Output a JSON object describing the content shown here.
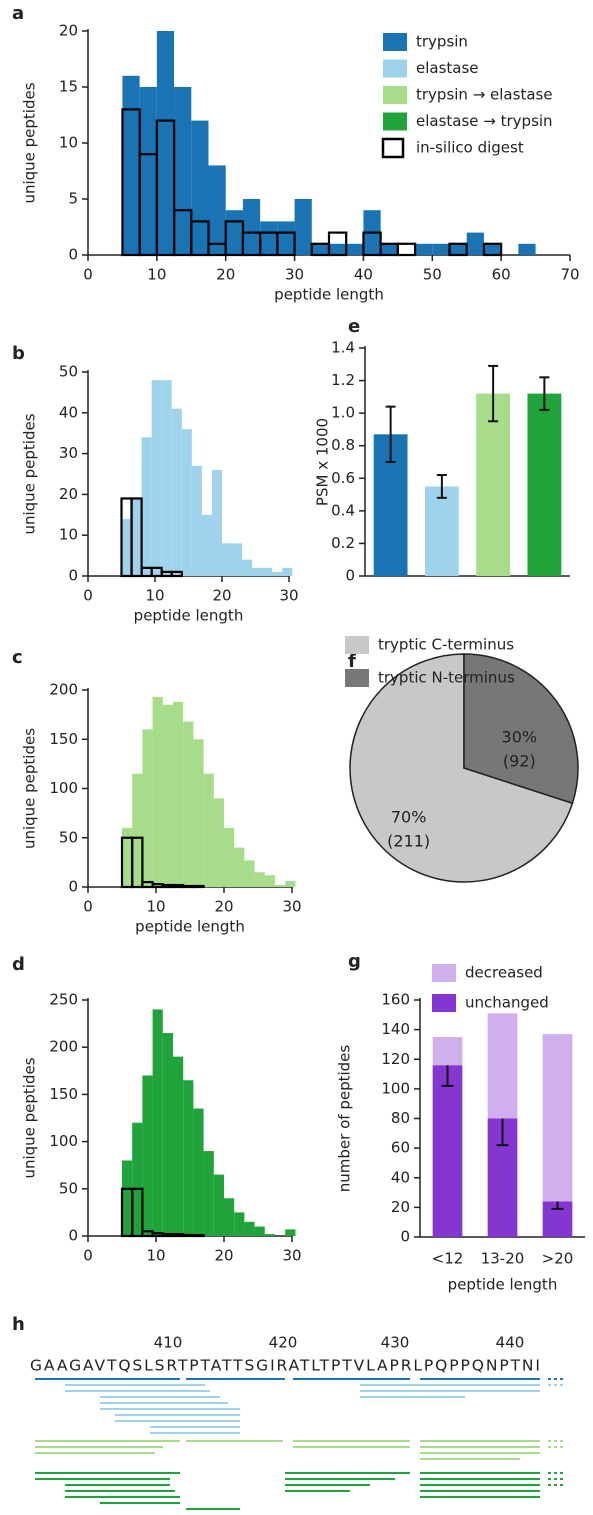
{
  "chart_data": [
    {
      "type": "histogram",
      "label": "a",
      "xlabel": "peptide length",
      "ylabel": "unique peptides",
      "xlim": [
        0,
        70
      ],
      "xticks": [
        0,
        10,
        20,
        30,
        40,
        50,
        60,
        70
      ],
      "ylim": [
        0,
        20
      ],
      "yticks": [
        0,
        5,
        10,
        15,
        20
      ],
      "bins": [
        5,
        7.5,
        10,
        12.5,
        15,
        17.5,
        20,
        22.5,
        25,
        27.5,
        30,
        32.5,
        35,
        37.5,
        40,
        42.5,
        45,
        47.5,
        50,
        52.5,
        55,
        57.5,
        60,
        62.5,
        65
      ],
      "series": [
        {
          "color": "#1a74b4",
          "values": [
            16,
            15,
            20,
            15,
            12,
            8,
            4,
            5,
            3,
            3,
            5,
            1,
            1,
            1,
            4,
            1,
            0,
            1,
            1,
            1,
            2,
            1,
            0,
            1
          ]
        },
        {
          "color": "#000000",
          "outline": true,
          "values": [
            13,
            9,
            12,
            4,
            3,
            1,
            3,
            2,
            2,
            2,
            0,
            1,
            2,
            0,
            2,
            1,
            1,
            0,
            0,
            1,
            0,
            1,
            0,
            0
          ]
        }
      ],
      "legend_position": "upper right",
      "legend": [
        {
          "name": "trypsin",
          "color": "#1a74b4"
        },
        {
          "name": "elastase",
          "color": "#9fd2eb"
        },
        {
          "name": "trypsin → elastase",
          "color": "#a6dc8a"
        },
        {
          "name": "elastase → trypsin",
          "color": "#1fa33a"
        },
        {
          "name": "in-silico digest",
          "color": "#000000",
          "outline": true
        }
      ]
    },
    {
      "type": "histogram",
      "label": "b",
      "xlabel": "peptide length",
      "ylabel": "unique peptides",
      "xlim": [
        0,
        30
      ],
      "xticks": [
        0,
        10,
        20,
        30
      ],
      "ylim": [
        0,
        50
      ],
      "yticks": [
        0,
        10,
        20,
        30,
        40,
        50
      ],
      "bins": [
        5,
        6.5,
        8,
        9.5,
        11,
        12.5,
        14,
        15.5,
        17,
        18.5,
        20,
        21.5,
        23,
        24.5,
        26,
        27.5,
        29,
        30.5
      ],
      "series": [
        {
          "color": "#9fd2eb",
          "values": [
            14,
            19,
            34,
            48,
            48,
            41,
            36,
            27,
            15,
            26,
            8,
            8,
            4,
            2,
            2,
            1,
            2
          ]
        },
        {
          "color": "#000000",
          "outline": true,
          "values": [
            19,
            19,
            2,
            2,
            1,
            1,
            0,
            0,
            0,
            0,
            0,
            0,
            0,
            0,
            0,
            0,
            0
          ]
        }
      ]
    },
    {
      "type": "histogram",
      "label": "c",
      "xlabel": "peptide length",
      "ylabel": "unique peptides",
      "xlim": [
        0,
        30
      ],
      "xticks": [
        0,
        10,
        20,
        30
      ],
      "ylim": [
        0,
        200
      ],
      "yticks": [
        0,
        50,
        100,
        150,
        200
      ],
      "bins": [
        5,
        6.5,
        8,
        9.5,
        11,
        12.5,
        14,
        15.5,
        17,
        18.5,
        20,
        21.5,
        23,
        24.5,
        26,
        27.5,
        29,
        30.5
      ],
      "series": [
        {
          "color": "#a6dc8a",
          "values": [
            60,
            115,
            160,
            193,
            185,
            188,
            168,
            150,
            115,
            90,
            60,
            40,
            27,
            15,
            12,
            2,
            6
          ]
        },
        {
          "color": "#000000",
          "outline": true,
          "values": [
            50,
            50,
            5,
            3,
            2,
            2,
            1,
            1,
            0,
            0,
            0,
            0,
            0,
            0,
            0,
            0,
            0
          ]
        }
      ]
    },
    {
      "type": "histogram",
      "label": "d",
      "ylabel": "unique peptides",
      "xlim": [
        0,
        30
      ],
      "xticks": [
        0,
        10,
        20,
        30
      ],
      "ylim": [
        0,
        250
      ],
      "yticks": [
        0,
        50,
        100,
        150,
        200,
        250
      ],
      "bins": [
        5,
        6.5,
        8,
        9.5,
        11,
        12.5,
        14,
        15.5,
        17,
        18.5,
        20,
        21.5,
        23,
        24.5,
        26,
        27.5,
        29,
        30.5
      ],
      "series": [
        {
          "color": "#1fa33a",
          "values": [
            80,
            120,
            170,
            240,
            215,
            190,
            165,
            135,
            90,
            65,
            40,
            25,
            15,
            10,
            2,
            0,
            7
          ]
        },
        {
          "color": "#000000",
          "outline": true,
          "values": [
            50,
            50,
            5,
            3,
            2,
            2,
            1,
            1,
            0,
            0,
            0,
            0,
            0,
            0,
            0,
            0,
            0
          ]
        }
      ]
    },
    {
      "type": "bar",
      "label": "e",
      "ylabel": "PSM x 1000",
      "categories": [
        null,
        null,
        null,
        null
      ],
      "values": [
        0.87,
        0.55,
        1.12,
        1.12
      ],
      "errors": [
        0.17,
        0.07,
        0.17,
        0.1
      ],
      "colors": [
        "#1a74b4",
        "#9fd2eb",
        "#a6dc8a",
        "#1fa33a"
      ],
      "ylim": [
        0,
        1.4
      ],
      "yticks": [
        0,
        0.2,
        0.4,
        0.6,
        0.8,
        {
          "value": 1,
          "label": "1.0"
        },
        1.2,
        1.4
      ]
    },
    {
      "type": "pie",
      "label": "f",
      "categories": [
        "tryptic C-terminus",
        "tryptic N-terminus"
      ],
      "values": [
        70,
        30
      ],
      "value_labels": [
        "70%",
        "30%"
      ],
      "count_labels": [
        "(211)",
        "(92)"
      ],
      "colors": [
        "#c8c8c8",
        "#777777"
      ],
      "legend_position": "upper left"
    },
    {
      "type": "stacked_bar",
      "label": "g",
      "xlabel": "peptide length",
      "ylabel": "number of peptides",
      "categories": [
        "<12",
        "13-20",
        ">20"
      ],
      "series": [
        {
          "name": "decreased",
          "color": "#cfb0ec",
          "values": [
            19,
            71,
            113
          ]
        },
        {
          "name": "unchanged",
          "color": "#8535d0",
          "values": [
            116,
            80,
            24
          ],
          "errors": [
            14,
            18,
            5
          ]
        }
      ],
      "ylim": [
        0,
        160
      ],
      "yticks": [
        0,
        20,
        40,
        60,
        80,
        100,
        120,
        140,
        160
      ],
      "legend_position": "top"
    }
  ],
  "sequence_panel": {
    "label": "h",
    "positions": [
      "410",
      "420",
      "430",
      "440"
    ],
    "sequence": "GAAGAVTQSLSRTPTATTSGIRATLTPTVLAPRLPQPPQNPTNI"
  }
}
